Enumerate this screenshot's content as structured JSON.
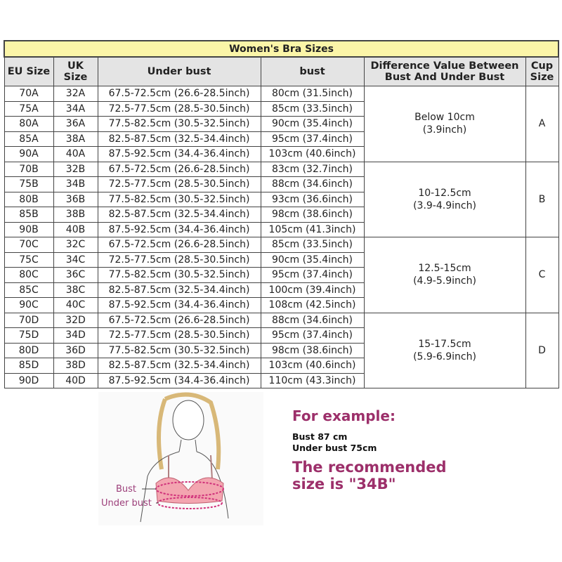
{
  "table": {
    "title": "Women's Bra Sizes",
    "headers": {
      "eu": "EU Size",
      "uk1": "UK",
      "uk2": "Size",
      "under": "Under bust",
      "bust": "bust",
      "diff1": "Difference Value Between",
      "diff2": "Bust And Under Bust",
      "cup1": "Cup",
      "cup2": "Size"
    },
    "groups": [
      {
        "cup": "A",
        "diff1": "Below 10cm",
        "diff2": "(3.9inch)",
        "rows": [
          [
            "70A",
            "32A",
            "67.5-72.5cm (26.6-28.5inch)",
            "80cm (31.5inch)"
          ],
          [
            "75A",
            "34A",
            "72.5-77.5cm (28.5-30.5inch)",
            "85cm (33.5inch)"
          ],
          [
            "80A",
            "36A",
            "77.5-82.5cm (30.5-32.5inch)",
            "90cm (35.4inch)"
          ],
          [
            "85A",
            "38A",
            "82.5-87.5cm (32.5-34.4inch)",
            "95cm (37.4inch)"
          ],
          [
            "90A",
            "40A",
            "87.5-92.5cm (34.4-36.4inch)",
            "103cm (40.6inch)"
          ]
        ]
      },
      {
        "cup": "B",
        "diff1": "10-12.5cm",
        "diff2": "(3.9-4.9inch)",
        "rows": [
          [
            "70B",
            "32B",
            "67.5-72.5cm (26.6-28.5inch)",
            "83cm (32.7inch)"
          ],
          [
            "75B",
            "34B",
            "72.5-77.5cm (28.5-30.5inch)",
            "88cm (34.6inch)"
          ],
          [
            "80B",
            "36B",
            "77.5-82.5cm (30.5-32.5inch)",
            "93cm (36.6inch)"
          ],
          [
            "85B",
            "38B",
            "82.5-87.5cm (32.5-34.4inch)",
            "98cm (38.6inch)"
          ],
          [
            "90B",
            "40B",
            "87.5-92.5cm (34.4-36.4inch)",
            "105cm (41.3inch)"
          ]
        ]
      },
      {
        "cup": "C",
        "diff1": "12.5-15cm",
        "diff2": "(4.9-5.9inch)",
        "rows": [
          [
            "70C",
            "32C",
            "67.5-72.5cm (26.6-28.5inch)",
            "85cm (33.5inch)"
          ],
          [
            "75C",
            "34C",
            "72.5-77.5cm (28.5-30.5inch)",
            "90cm (35.4inch)"
          ],
          [
            "80C",
            "36C",
            "77.5-82.5cm (30.5-32.5inch)",
            "95cm (37.4inch)"
          ],
          [
            "85C",
            "38C",
            "82.5-87.5cm (32.5-34.4inch)",
            "100cm (39.4inch)"
          ],
          [
            "90C",
            "40C",
            "87.5-92.5cm (34.4-36.4inch)",
            "108cm (42.5inch)"
          ]
        ]
      },
      {
        "cup": "D",
        "diff1": "15-17.5cm",
        "diff2": "(5.9-6.9inch)",
        "rows": [
          [
            "70D",
            "32D",
            "67.5-72.5cm (26.6-28.5inch)",
            "88cm (34.6inch)"
          ],
          [
            "75D",
            "34D",
            "72.5-77.5cm (28.5-30.5inch)",
            "95cm (37.4inch)"
          ],
          [
            "80D",
            "36D",
            "77.5-82.5cm (30.5-32.5inch)",
            "98cm (38.6inch)"
          ],
          [
            "85D",
            "38D",
            "82.5-87.5cm (32.5-34.4inch)",
            "103cm (40.6inch)"
          ],
          [
            "90D",
            "40D",
            "87.5-92.5cm (34.4-36.4inch)",
            "110cm (43.3inch)"
          ]
        ]
      }
    ]
  },
  "illustration": {
    "bust_label": "Bust",
    "under_bust_label": "Under bust"
  },
  "example": {
    "heading": "For example:",
    "line1": "Bust 87 cm",
    "line2": "Under bust 75cm",
    "rec1": "The recommended",
    "rec2": "size is \"34B\""
  },
  "colors": {
    "title_bg": "#fbf5a8",
    "header_bg": "#e4e4e4",
    "accent": "#9c2f6a",
    "bra": "#e0607a"
  }
}
